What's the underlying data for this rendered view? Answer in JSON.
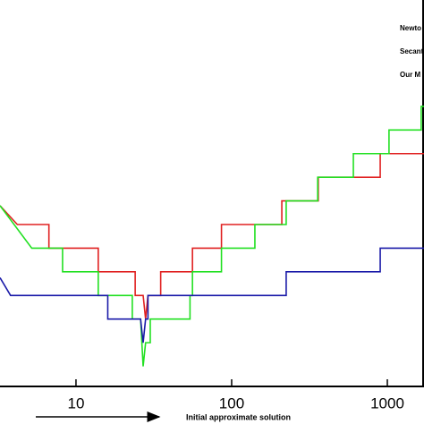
{
  "chart_data": {
    "type": "line",
    "x_label": "Initial approximate solution",
    "log_x": true,
    "xlim": [
      3.25,
      1720
    ],
    "ylim": [
      0.15,
      16.5
    ],
    "xticks": [
      10,
      100,
      1000
    ],
    "legend": "upper right",
    "series": [
      {
        "name": "Newto",
        "color": "#e02020",
        "x": [
          3.25,
          4.2,
          6.7,
          6.7,
          13.9,
          13.9,
          24,
          24,
          27,
          28,
          29,
          35,
          35,
          56,
          56,
          86,
          86,
          210,
          210,
          360,
          360,
          900,
          900,
          1720
        ],
        "values": [
          7.8,
          7,
          7,
          6,
          6,
          5,
          5,
          4,
          4,
          3,
          4,
          4,
          5,
          5,
          6,
          6,
          7,
          7,
          8,
          8,
          9,
          9,
          10,
          10
        ]
      },
      {
        "name": "Secant",
        "color": "#22e022",
        "x": [
          3.25,
          5.2,
          8.2,
          8.2,
          13.9,
          13.9,
          23,
          23,
          26,
          27,
          28,
          30,
          30,
          54,
          54,
          56,
          56,
          86,
          86,
          141,
          141,
          224,
          224,
          357,
          357,
          605,
          605,
          1025,
          1025,
          1650,
          1650,
          1720
        ],
        "values": [
          7.8,
          6,
          6,
          5,
          5,
          4,
          4,
          3,
          3,
          1,
          2,
          2,
          3,
          3,
          4,
          4,
          5,
          5,
          6,
          6,
          7,
          7,
          8,
          8,
          9,
          9,
          10,
          10,
          11,
          11,
          12,
          12
        ]
      },
      {
        "name": "Our M",
        "color": "#1a1aa8",
        "x": [
          3.25,
          3.8,
          16,
          16,
          26,
          27,
          28,
          29,
          29,
          224,
          224,
          900,
          900,
          1720
        ],
        "values": [
          4.75,
          4,
          4,
          3,
          3,
          2,
          3,
          3,
          4,
          4,
          5,
          5,
          6,
          6
        ]
      }
    ]
  }
}
